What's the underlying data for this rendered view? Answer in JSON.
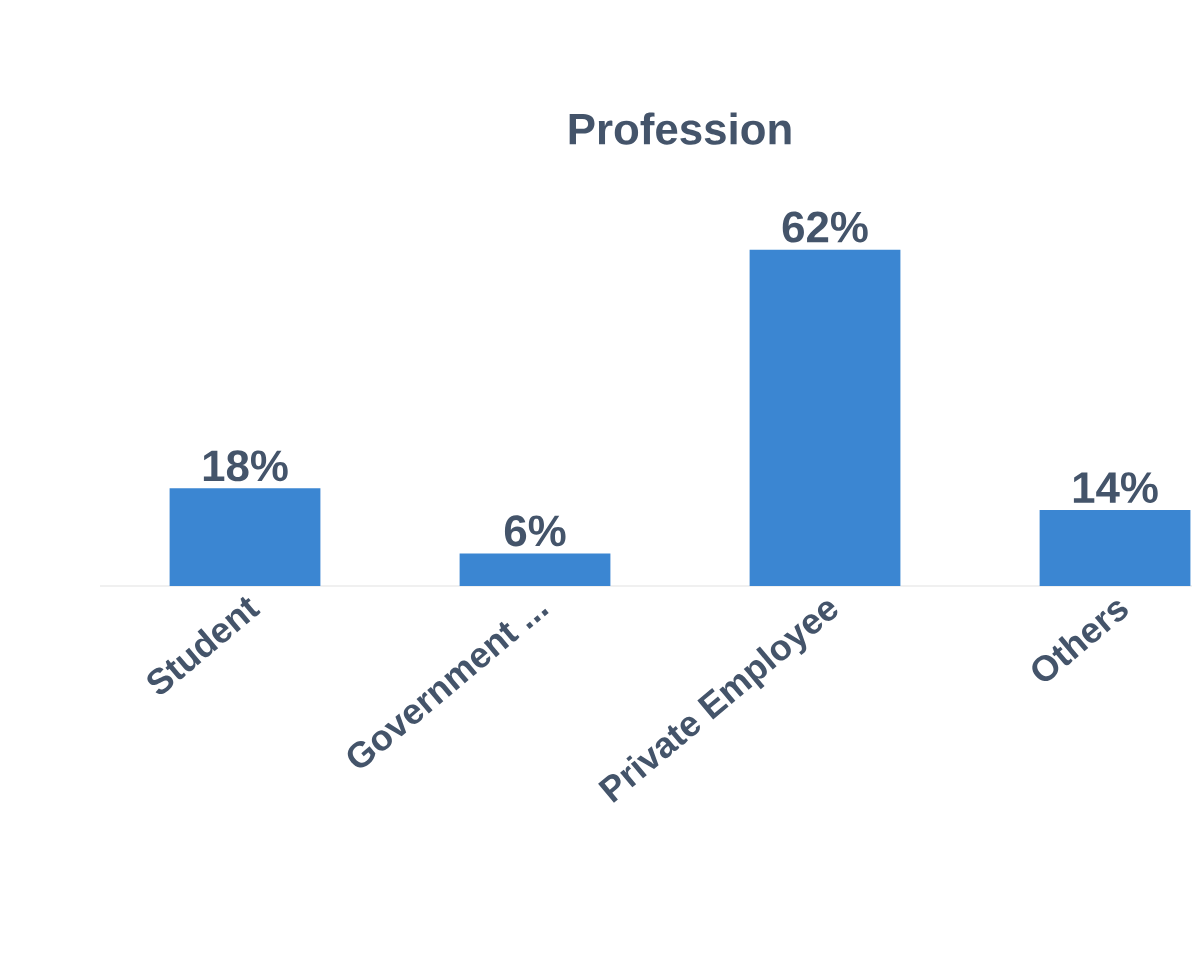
{
  "chart_data": {
    "type": "bar",
    "title": "Profession",
    "categories": [
      "Student",
      "Government ...",
      "Private Employee",
      "Others"
    ],
    "values": [
      18,
      6,
      62,
      14
    ],
    "value_labels": [
      "18%",
      "6%",
      "62%",
      "14%"
    ],
    "color": "#3b86d2"
  }
}
